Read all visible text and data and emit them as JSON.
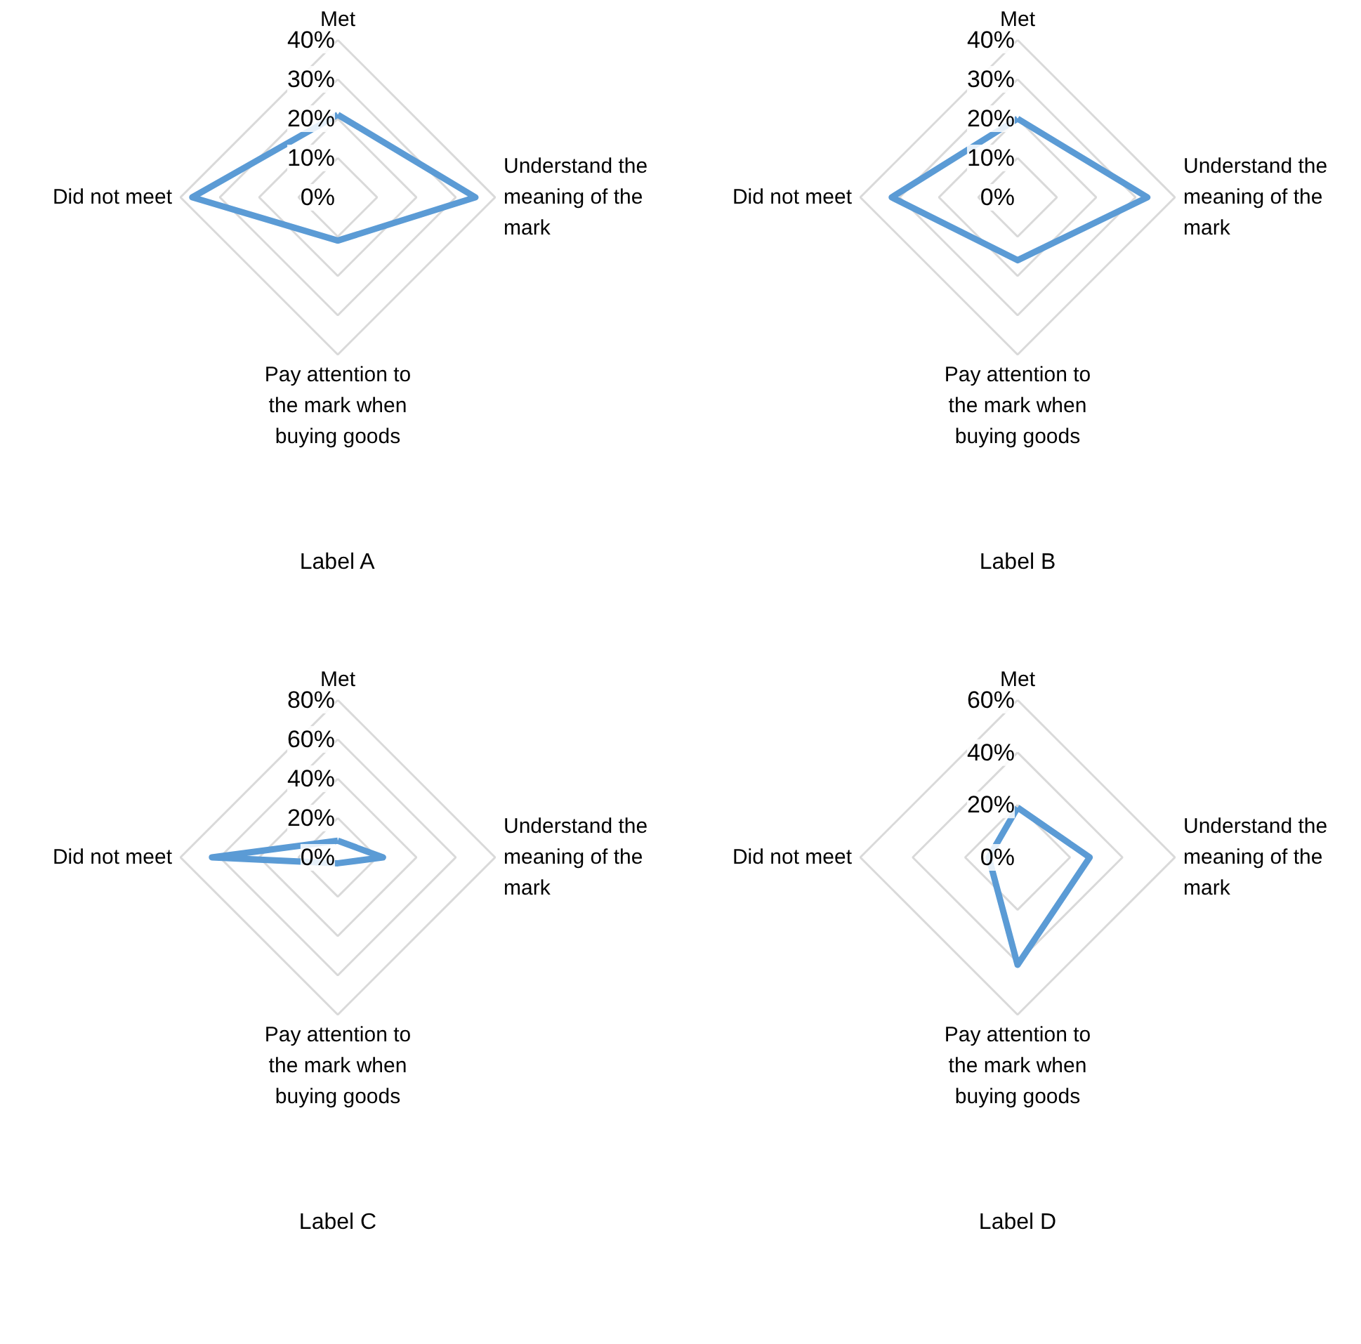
{
  "chart_data": [
    {
      "type": "radar",
      "title": "Label A",
      "categories": [
        "Met",
        "Understand the meaning of the mark",
        "Pay attention to the mark when buying goods",
        "Did not meet"
      ],
      "series": [
        {
          "color": "#5b9bd5",
          "values": [
            21,
            35,
            11,
            37
          ]
        }
      ],
      "ylim": [
        0,
        40
      ],
      "yticks": [
        {
          "value": 0,
          "label": "0%"
        },
        {
          "value": 10,
          "label": "10%"
        },
        {
          "value": 20,
          "label": "20%"
        },
        {
          "value": 30,
          "label": "30%"
        },
        {
          "value": 40,
          "label": "40%"
        }
      ],
      "grid": true
    },
    {
      "type": "radar",
      "title": "Label B",
      "categories": [
        "Met",
        "Understand the meaning of the mark",
        "Pay attention to the mark when buying goods",
        "Did not meet"
      ],
      "series": [
        {
          "color": "#5b9bd5",
          "values": [
            20,
            33,
            16,
            32
          ]
        }
      ],
      "ylim": [
        0,
        40
      ],
      "yticks": [
        {
          "value": 0,
          "label": "0%"
        },
        {
          "value": 10,
          "label": "10%"
        },
        {
          "value": 20,
          "label": "20%"
        },
        {
          "value": 30,
          "label": "30%"
        },
        {
          "value": 40,
          "label": "40%"
        }
      ],
      "grid": true
    },
    {
      "type": "radar",
      "title": "Label C",
      "categories": [
        "Met",
        "Understand the meaning of the mark",
        "Pay attention to the mark when buying goods",
        "Did not meet"
      ],
      "series": [
        {
          "color": "#5b9bd5",
          "values": [
            8.5,
            23,
            3,
            64
          ]
        }
      ],
      "ylim": [
        0,
        80
      ],
      "yticks": [
        {
          "value": 0,
          "label": "0%"
        },
        {
          "value": 20,
          "label": "20%"
        },
        {
          "value": 40,
          "label": "40%"
        },
        {
          "value": 60,
          "label": "60%"
        },
        {
          "value": 80,
          "label": "80%"
        }
      ],
      "grid": true
    },
    {
      "type": "radar",
      "title": "Label D",
      "categories": [
        "Met",
        "Understand the meaning of the mark",
        "Pay attention to the mark when buying goods",
        "Did not meet"
      ],
      "series": [
        {
          "color": "#5b9bd5",
          "values": [
            19,
            27.5,
            41,
            11
          ]
        }
      ],
      "ylim": [
        0,
        60
      ],
      "yticks": [
        {
          "value": 0,
          "label": "0%"
        },
        {
          "value": 20,
          "label": "20%"
        },
        {
          "value": 40,
          "label": "40%"
        },
        {
          "value": 60,
          "label": "60%"
        }
      ],
      "grid": true
    }
  ]
}
